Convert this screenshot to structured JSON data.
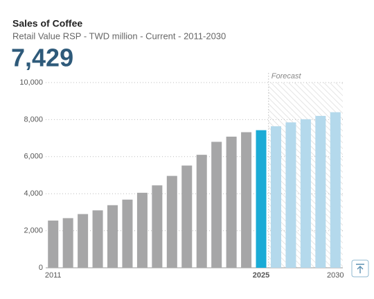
{
  "chart_data": {
    "type": "bar",
    "title": "Sales of Coffee",
    "subtitle": "Retail Value RSP - TWD million - Current - 2011-2030",
    "headline": "7,429",
    "categories": [
      "2011",
      null,
      null,
      null,
      null,
      null,
      null,
      null,
      null,
      null,
      null,
      null,
      null,
      null,
      "2025",
      null,
      null,
      null,
      null,
      "2030"
    ],
    "values": [
      2550,
      2680,
      2900,
      3100,
      3380,
      3680,
      4050,
      4450,
      4960,
      5520,
      6100,
      6800,
      7080,
      7320,
      7429,
      7640,
      7850,
      8020,
      8200,
      8400
    ],
    "colors": [
      "#a6a6a7",
      "#a6a6a7",
      "#a6a6a7",
      "#a6a6a7",
      "#a6a6a7",
      "#a6a6a7",
      "#a6a6a7",
      "#a6a6a7",
      "#a6a6a7",
      "#a6a6a7",
      "#a6a6a7",
      "#a6a6a7",
      "#a6a6a7",
      "#a6a6a7",
      "#1aabd6",
      "#b4d9ec",
      "#b4d9ec",
      "#b4d9ec",
      "#b4d9ec",
      "#b4d9ec"
    ],
    "forecast": {
      "label": "Forecast",
      "color": "#b4d9ec"
    },
    "ylim": [
      0,
      10000
    ],
    "yticks": [
      0,
      {
        "value": 2000,
        "label": "2,000"
      },
      {
        "value": 4000,
        "label": "4,000"
      },
      {
        "value": 6000,
        "label": "6,000"
      },
      {
        "value": 8000,
        "label": "8,000"
      },
      {
        "value": 10000,
        "label": "10,000"
      }
    ],
    "grid": true
  }
}
